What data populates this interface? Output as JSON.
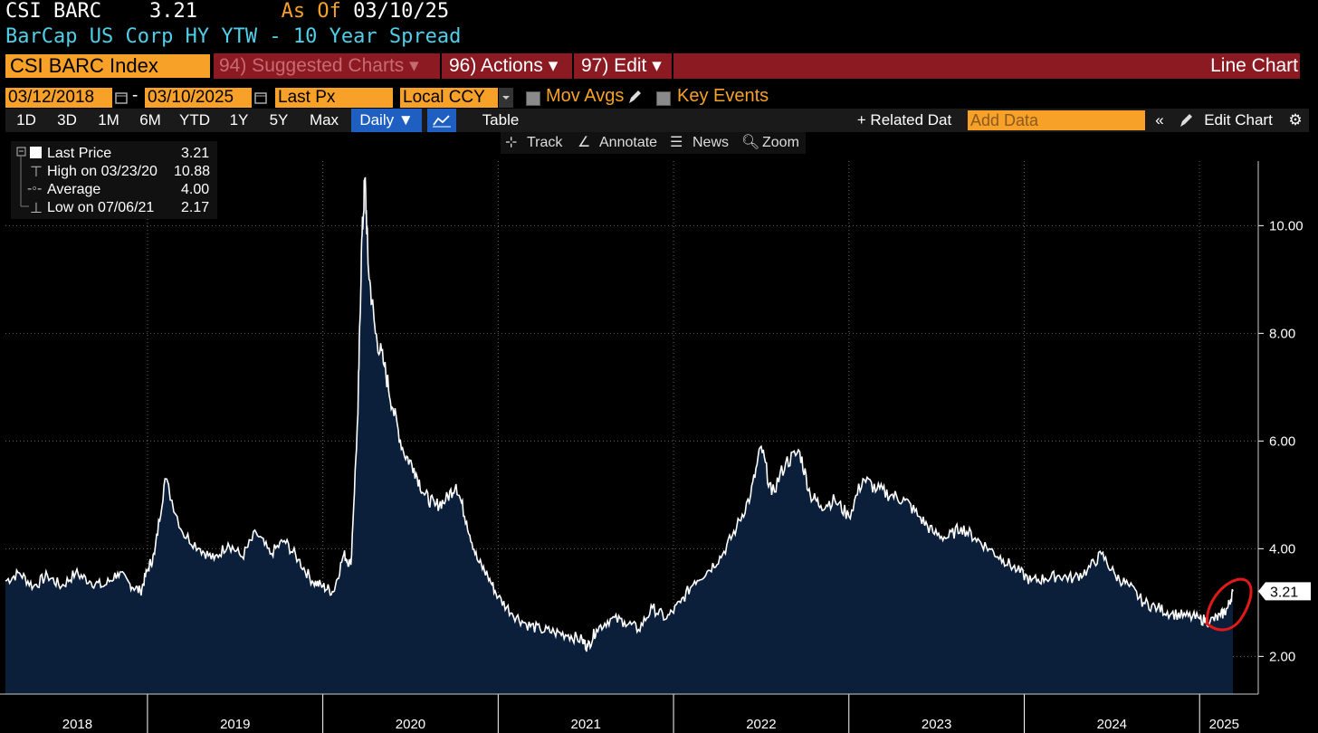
{
  "header": {
    "ticker": "CSI BARC",
    "last_value": "3.21",
    "as_of_label": "As Of",
    "as_of_date": "03/10/25",
    "description": "BarCap US Corp HY YTW - 10 Year Spread"
  },
  "toolbar1": {
    "security": "CSI BARC Index",
    "suggested": "94) Suggested Charts ▾",
    "actions": "96) Actions ▾",
    "edit": "97) Edit ▾",
    "chart_type": "Line Chart"
  },
  "toolbar2": {
    "date_from": "03/12/2018",
    "date_to": "03/10/2025",
    "field": "Last Px",
    "currency": "Local CCY",
    "mov_avgs": "Mov Avgs",
    "key_events": "Key Events"
  },
  "periods": [
    "1D",
    "3D",
    "1M",
    "6M",
    "YTD",
    "1Y",
    "5Y",
    "Max"
  ],
  "toolbar3": {
    "frequency": "Daily ▼",
    "table": "Table",
    "related": "+ Related Dat",
    "add_data_placeholder": "Add Data",
    "edit_chart": "Edit Chart"
  },
  "tools": {
    "track": "Track",
    "annotate": "Annotate",
    "news": "News",
    "zoom": "Zoom"
  },
  "legend": {
    "last_label": "Last Price",
    "last_value": "3.21",
    "high_label": "High on 03/23/20",
    "high_value": "10.88",
    "avg_label": "Average",
    "avg_value": "4.00",
    "low_label": "Low on 07/06/21",
    "low_value": "2.17"
  },
  "colors": {
    "orange": "#f7a128",
    "maroon": "#8b1a22",
    "cyan": "#4fd0e8",
    "area_fill": "#0b1f3a",
    "line": "#ffffff",
    "highlight_circle": "#e01a1a"
  },
  "chart_data": {
    "type": "area",
    "x_label_years": [
      "2018",
      "2019",
      "2020",
      "2021",
      "2022",
      "2023",
      "2024",
      "2025"
    ],
    "y_ticks": [
      "2.00",
      "4.00",
      "6.00",
      "8.00",
      "10.00"
    ],
    "ylim": [
      1.3,
      11.3
    ],
    "last_value_label": "3.21",
    "grid": true,
    "series": [
      {
        "x": [
          2018.19,
          2018.27,
          2018.35,
          2018.43,
          2018.51,
          2018.59,
          2018.67,
          2018.75,
          2018.83,
          2018.9,
          2018.96,
          2019.0,
          2019.04,
          2019.1,
          2019.2,
          2019.3,
          2019.38,
          2019.46,
          2019.54,
          2019.62,
          2019.7,
          2019.78,
          2019.86,
          2019.94,
          2020.0,
          2020.06,
          2020.12,
          2020.16,
          2020.2,
          2020.22,
          2020.24,
          2020.26,
          2020.3,
          2020.35,
          2020.4,
          2020.46,
          2020.52,
          2020.58,
          2020.64,
          2020.7,
          2020.76,
          2020.82,
          2020.88,
          2020.94,
          2021.0,
          2021.08,
          2021.16,
          2021.24,
          2021.32,
          2021.4,
          2021.48,
          2021.51,
          2021.56,
          2021.64,
          2021.72,
          2021.8,
          2021.88,
          2021.96,
          2022.04,
          2022.12,
          2022.2,
          2022.28,
          2022.36,
          2022.44,
          2022.5,
          2022.56,
          2022.64,
          2022.72,
          2022.78,
          2022.84,
          2022.92,
          2023.0,
          2023.08,
          2023.16,
          2023.24,
          2023.32,
          2023.4,
          2023.48,
          2023.56,
          2023.64,
          2023.72,
          2023.8,
          2023.88,
          2023.96,
          2024.04,
          2024.12,
          2024.2,
          2024.28,
          2024.36,
          2024.44,
          2024.52,
          2024.6,
          2024.68,
          2024.76,
          2024.84,
          2024.92,
          2025.0,
          2025.06,
          2025.12,
          2025.16,
          2025.19
        ],
        "y": [
          3.4,
          3.55,
          3.3,
          3.5,
          3.3,
          3.55,
          3.4,
          3.3,
          3.55,
          3.35,
          3.2,
          3.6,
          3.9,
          5.3,
          4.3,
          4.0,
          3.8,
          4.1,
          3.85,
          4.3,
          3.9,
          4.15,
          3.8,
          3.4,
          3.3,
          3.2,
          3.9,
          3.7,
          6.5,
          9.5,
          10.88,
          9.2,
          8.0,
          7.4,
          6.6,
          5.8,
          5.5,
          5.0,
          4.8,
          4.9,
          5.2,
          4.5,
          3.8,
          3.5,
          3.1,
          2.8,
          2.6,
          2.5,
          2.45,
          2.4,
          2.3,
          2.17,
          2.5,
          2.7,
          2.65,
          2.5,
          2.9,
          2.7,
          3.0,
          3.4,
          3.6,
          3.9,
          4.4,
          5.0,
          5.9,
          5.0,
          5.6,
          5.8,
          5.0,
          4.8,
          4.9,
          4.6,
          5.3,
          5.1,
          5.0,
          4.9,
          4.6,
          4.3,
          4.2,
          4.4,
          4.2,
          4.0,
          3.8,
          3.6,
          3.4,
          3.45,
          3.5,
          3.45,
          3.6,
          3.9,
          3.5,
          3.3,
          3.0,
          2.9,
          2.8,
          2.75,
          2.7,
          2.65,
          2.75,
          2.9,
          3.21
        ]
      }
    ]
  }
}
